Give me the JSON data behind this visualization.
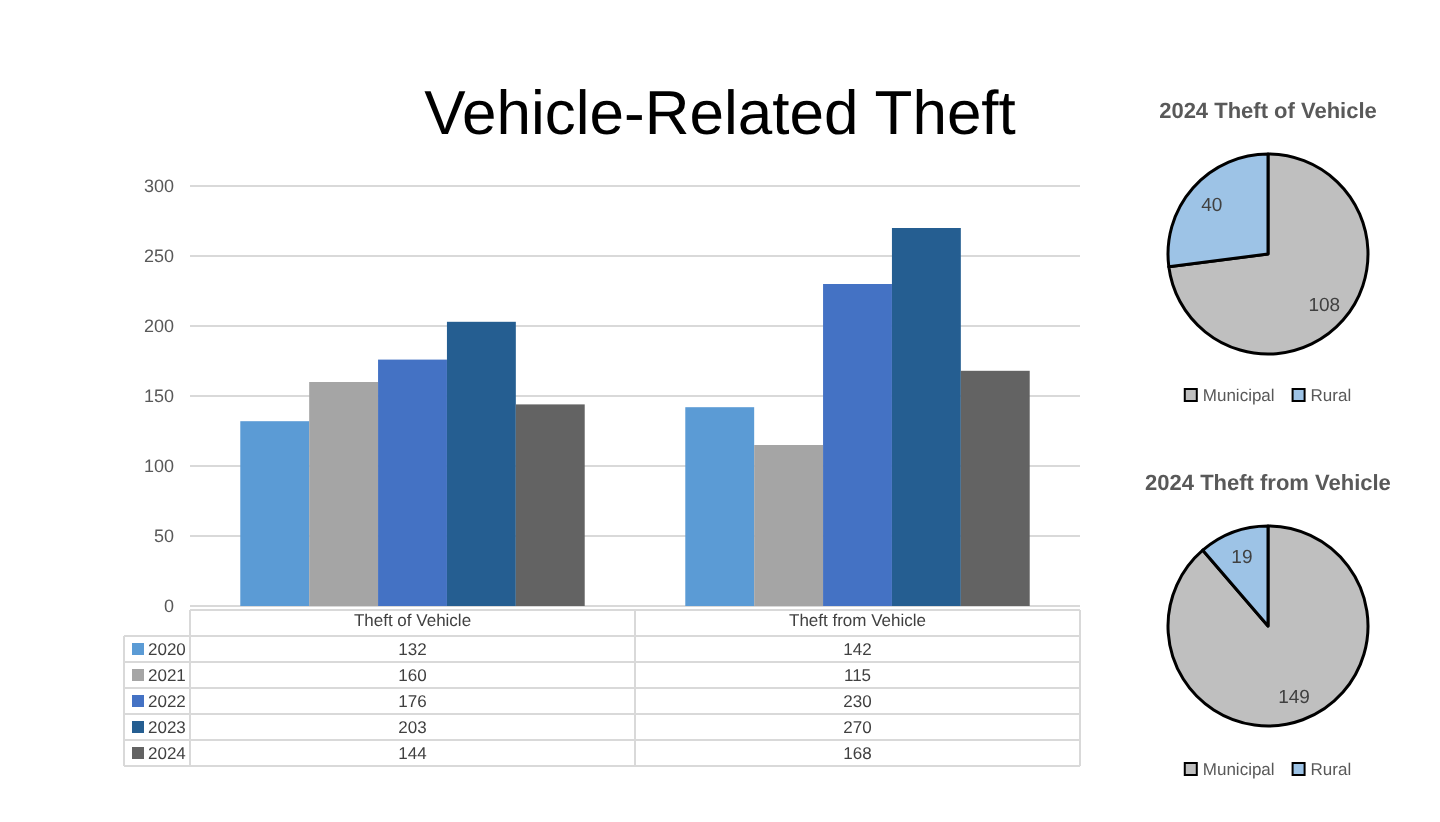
{
  "chart_data": [
    {
      "type": "bar",
      "title": "Vehicle-Related Theft",
      "categories": [
        "Theft of Vehicle",
        "Theft from Vehicle"
      ],
      "series": [
        {
          "name": "2020",
          "color": "#5b9bd5",
          "values": [
            132,
            142
          ]
        },
        {
          "name": "2021",
          "color": "#a5a5a5",
          "values": [
            160,
            115
          ]
        },
        {
          "name": "2022",
          "color": "#4472c4",
          "values": [
            176,
            230
          ]
        },
        {
          "name": "2023",
          "color": "#255e91",
          "values": [
            203,
            270
          ]
        },
        {
          "name": "2024",
          "color": "#636363",
          "values": [
            144,
            168
          ]
        }
      ],
      "ylim": [
        0,
        300
      ],
      "yticks": [
        0,
        50,
        100,
        150,
        200,
        250,
        300
      ],
      "grid": "y",
      "legend": "bottom",
      "data_labels": true
    },
    {
      "type": "pie",
      "title": "2024 Theft of Vehicle",
      "categories": [
        "Municipal",
        "Rural"
      ],
      "values": [
        108,
        40
      ],
      "colors": [
        "#bfbfbf",
        "#9dc3e6"
      ],
      "legend": "bottom",
      "data_labels": true
    },
    {
      "type": "pie",
      "title": "2024 Theft from Vehicle",
      "categories": [
        "Municipal",
        "Rural"
      ],
      "values": [
        149,
        19
      ],
      "colors": [
        "#bfbfbf",
        "#9dc3e6"
      ],
      "legend": "bottom",
      "data_labels": true
    }
  ]
}
